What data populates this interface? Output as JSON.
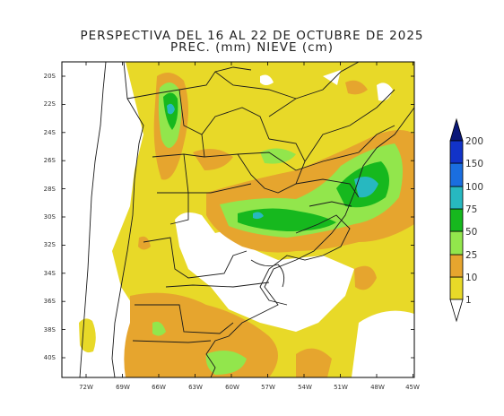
{
  "title_line1": "PERSPECTIVA DEL 16 AL 22 DE OCTUBRE DE 2025",
  "title_line2": "PREC. (mm) NIEVE (cm)",
  "lat_labels": [
    "20S",
    "22S",
    "24S",
    "26S",
    "28S",
    "30S",
    "32S",
    "34S",
    "36S",
    "38S",
    "40S"
  ],
  "lon_labels": [
    "72W",
    "69W",
    "66W",
    "63W",
    "60W",
    "57W",
    "54W",
    "51W",
    "48W",
    "45W"
  ],
  "colorbar": {
    "levels": [
      "1",
      "10",
      "25",
      "50",
      "75",
      "100",
      "150",
      "200"
    ],
    "colors": [
      "#e8d928",
      "#e6a52e",
      "#92e64c",
      "#16b81e",
      "#27b8c0",
      "#1a6ee0",
      "#1233c8",
      "#0a1878"
    ]
  },
  "precip_colors": {
    "light": "#e8d928",
    "orange": "#e6a52e",
    "lightgreen": "#92e64c",
    "green": "#16b81e",
    "cyan": "#27b8c0"
  }
}
